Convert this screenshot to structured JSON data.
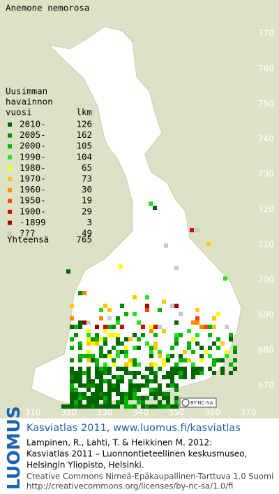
{
  "title": "Anemone nemorosa",
  "legend": {
    "heading": [
      "Uusimman",
      "havainnon"
    ],
    "columns": [
      "vuosi",
      "lkm"
    ],
    "rows": [
      {
        "label": "2010-",
        "count": 126,
        "color": "#006400"
      },
      {
        "label": "2005-",
        "count": 162,
        "color": "#008c00"
      },
      {
        "label": "2000-",
        "count": 105,
        "color": "#00b400"
      },
      {
        "label": "1990-",
        "count": 104,
        "color": "#22e022"
      },
      {
        "label": "1980-",
        "count": 65,
        "color": "#ffff00"
      },
      {
        "label": "1970-",
        "count": 73,
        "color": "#ffc800"
      },
      {
        "label": "1960-",
        "count": 30,
        "color": "#ff8c00"
      },
      {
        "label": "1950-",
        "count": 19,
        "color": "#ff4600"
      },
      {
        "label": "1900-",
        "count": 29,
        "color": "#dc0000"
      },
      {
        "label": "-1899",
        "count": 3,
        "color": "#a00000"
      },
      {
        "label": "???",
        "count": 49,
        "color": "#c8c8c8"
      }
    ],
    "total": {
      "label": "Yhteensä",
      "count": 765
    }
  },
  "axes": {
    "y_labels": [
      770,
      760,
      750,
      740,
      730,
      720,
      710,
      700,
      690,
      680,
      670
    ],
    "x_labels": [
      310,
      320,
      330,
      340,
      350,
      360,
      370
    ]
  },
  "license_badge": "BY-NC-SA",
  "footer": {
    "logo": "LUOMUS",
    "heading": "Kasviatlas 2011, www.luomus.fi/kasviatlas",
    "citation": [
      "Lampinen, R., Lahti, T. & Heikkinen M. 2012:",
      "Kasviatlas 2011 – Luonnontieteellinen keskusmuseo,",
      "Helsingin Yliopisto, Helsinki."
    ],
    "license": [
      "Creative Commons Nimeä-Epäkaupallinen-Tarttuva 1.0 Suomi",
      "http://creativecommons.org/licenses/by-nc-sa/1.0/fi"
    ]
  }
}
